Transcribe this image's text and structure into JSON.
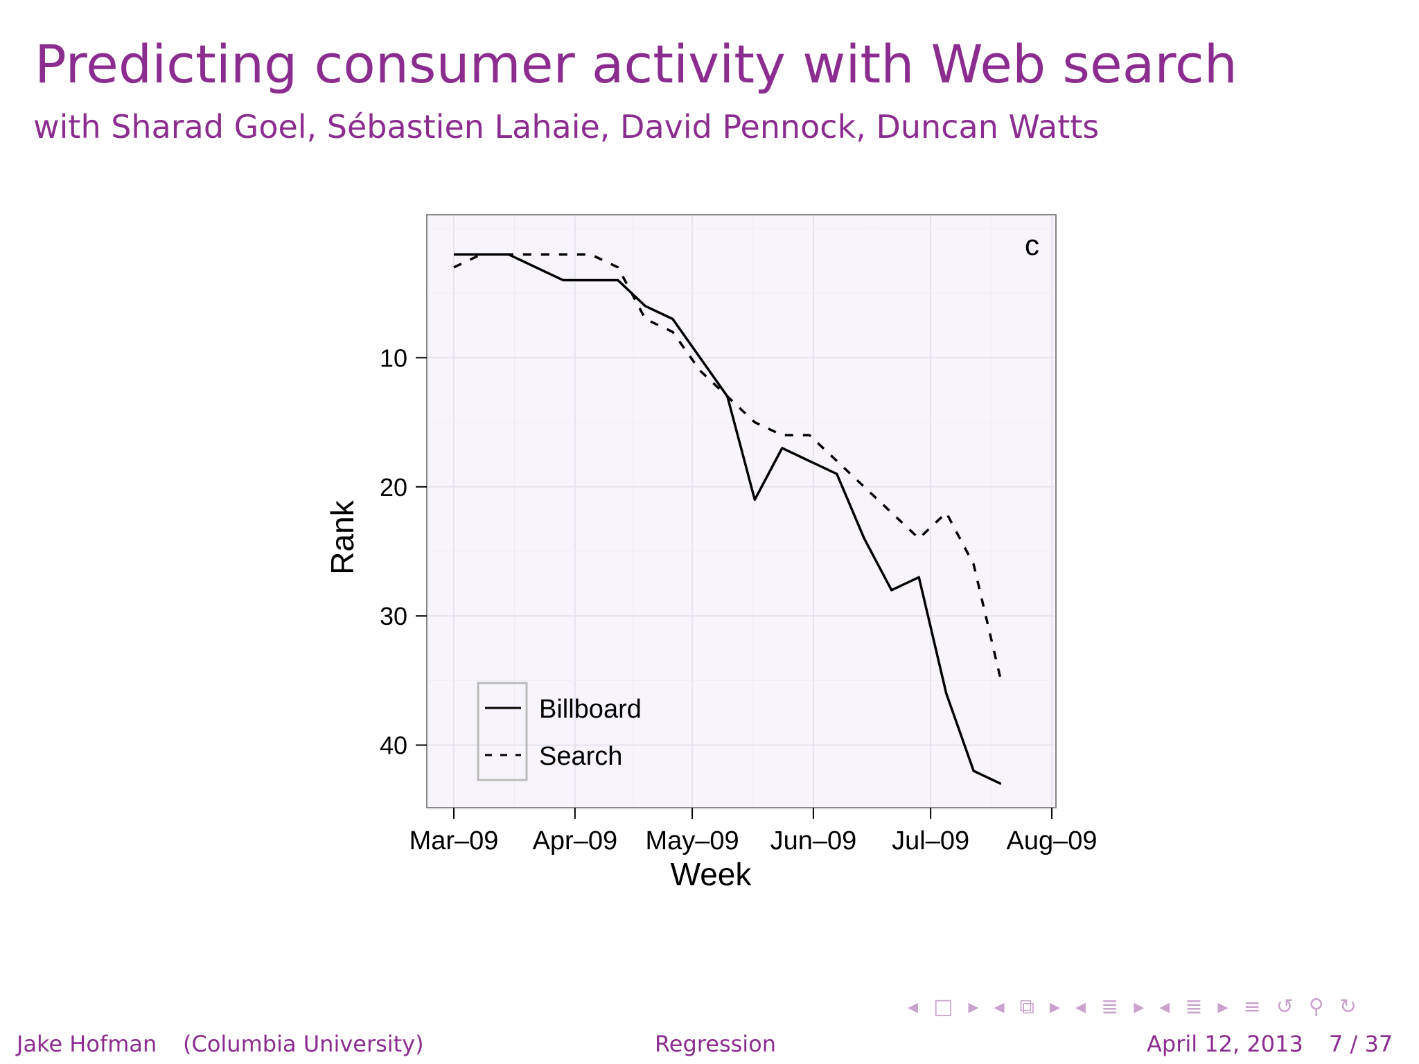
{
  "slide": {
    "title": "Predicting consumer activity with Web search",
    "subtitle": "with Sharad Goel, Sébastien Lahaie, David Pennock, Duncan Watts"
  },
  "footer": {
    "author": "Jake Hofman",
    "institution": "(Columbia University)",
    "topic": "Regression",
    "date": "April 12, 2013",
    "page": "7 / 37"
  },
  "nav_icons": [
    "arrow-left-icon",
    "frame-icon",
    "arrow-right-icon",
    "arrow-left-icon",
    "frames-icon",
    "arrow-right-icon",
    "arrow-left-icon",
    "section-icon",
    "arrow-right-icon",
    "arrow-left-icon",
    "subsection-icon",
    "arrow-right-icon",
    "outline-icon",
    "undo-icon",
    "search-icon",
    "redo-icon"
  ],
  "chart_data": {
    "type": "line",
    "panel_label": "c",
    "xlabel": "Week",
    "ylabel": "Rank",
    "x_ticks": [
      "Mar–09",
      "Apr–09",
      "May–09",
      "Jun–09",
      "Jul–09",
      "Aug–09"
    ],
    "y_ticks": [
      10,
      20,
      30,
      40
    ],
    "ylim": [
      45,
      0
    ],
    "y_reversed": true,
    "grid": true,
    "legend_position": "bottom-left",
    "x": [
      "2009-03-01",
      "2009-03-08",
      "2009-03-15",
      "2009-03-22",
      "2009-03-29",
      "2009-04-05",
      "2009-04-12",
      "2009-04-19",
      "2009-04-26",
      "2009-05-03",
      "2009-05-10",
      "2009-05-17",
      "2009-05-24",
      "2009-05-31",
      "2009-06-07",
      "2009-06-14",
      "2009-06-21",
      "2009-06-28",
      "2009-07-05",
      "2009-07-12",
      "2009-07-19"
    ],
    "series": [
      {
        "name": "Billboard",
        "style": "solid",
        "color": "#000000",
        "values": [
          2,
          2,
          2,
          3,
          4,
          4,
          4,
          6,
          7,
          10,
          13,
          21,
          17,
          18,
          19,
          24,
          28,
          27,
          36,
          42,
          43
        ]
      },
      {
        "name": "Search",
        "style": "dashed",
        "color": "#000000",
        "values": [
          3,
          2,
          2,
          2,
          2,
          2,
          3,
          7,
          8,
          11,
          13,
          15,
          16,
          16,
          18,
          20,
          22,
          24,
          22,
          26,
          35
        ]
      }
    ]
  },
  "colors": {
    "title": "#8b2d8f",
    "nav": "#c9a3cc"
  }
}
